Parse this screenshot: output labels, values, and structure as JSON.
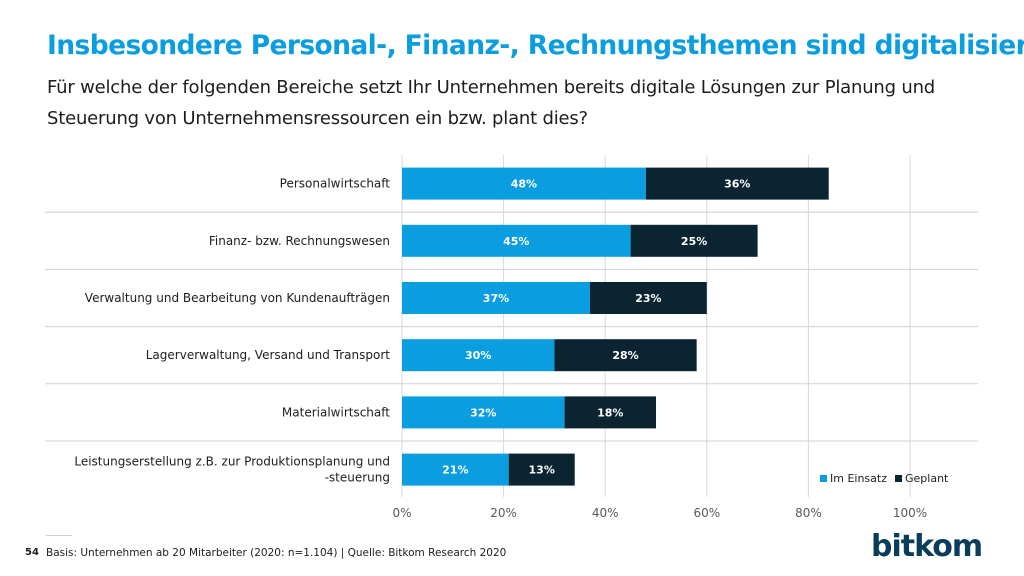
{
  "title": "Insbesondere Personal-, Finanz-, Rechnungsthemen sind digitalisiert",
  "subtitle": "Für  welche der folgenden Bereiche setzt Ihr Unternehmen bereits digitale Lösungen zur Planung und Steuerung von Unternehmensressourcen ein bzw. plant dies?",
  "footer": {
    "page_number": "54",
    "source": "Basis: Unternehmen ab 20 Mitarbeiter (2020: n=1.104) | Quelle: Bitkom Research 2020"
  },
  "logo": "bitkom",
  "colors": {
    "im_einsatz": "#0a9de0",
    "geplant": "#0b2431"
  },
  "chart_data": {
    "type": "bar",
    "orientation": "horizontal",
    "stacked": true,
    "categories": [
      "Personalwirtschaft",
      "Finanz- bzw. Rechnungswesen",
      "Verwaltung und Bearbeitung von Kundenaufträgen",
      "Lagerverwaltung, Versand und Transport",
      "Materialwirtschaft",
      "Leistungserstellung z.B. zur Produktionsplanung und -steuerung"
    ],
    "series": [
      {
        "name": "Im Einsatz",
        "values": [
          48,
          45,
          37,
          30,
          32,
          21
        ],
        "labels": [
          "48%",
          "45%",
          "37%",
          "30%",
          "32%",
          "21%"
        ]
      },
      {
        "name": "Geplant",
        "values": [
          36,
          25,
          23,
          28,
          18,
          13
        ],
        "labels": [
          "36%",
          "25%",
          "23%",
          "28%",
          "18%",
          "13%"
        ]
      }
    ],
    "xlim": [
      0,
      100
    ],
    "xticks": [
      "0%",
      "20%",
      "40%",
      "60%",
      "80%",
      "100%"
    ],
    "grid": true,
    "legend": "bottom-right"
  }
}
